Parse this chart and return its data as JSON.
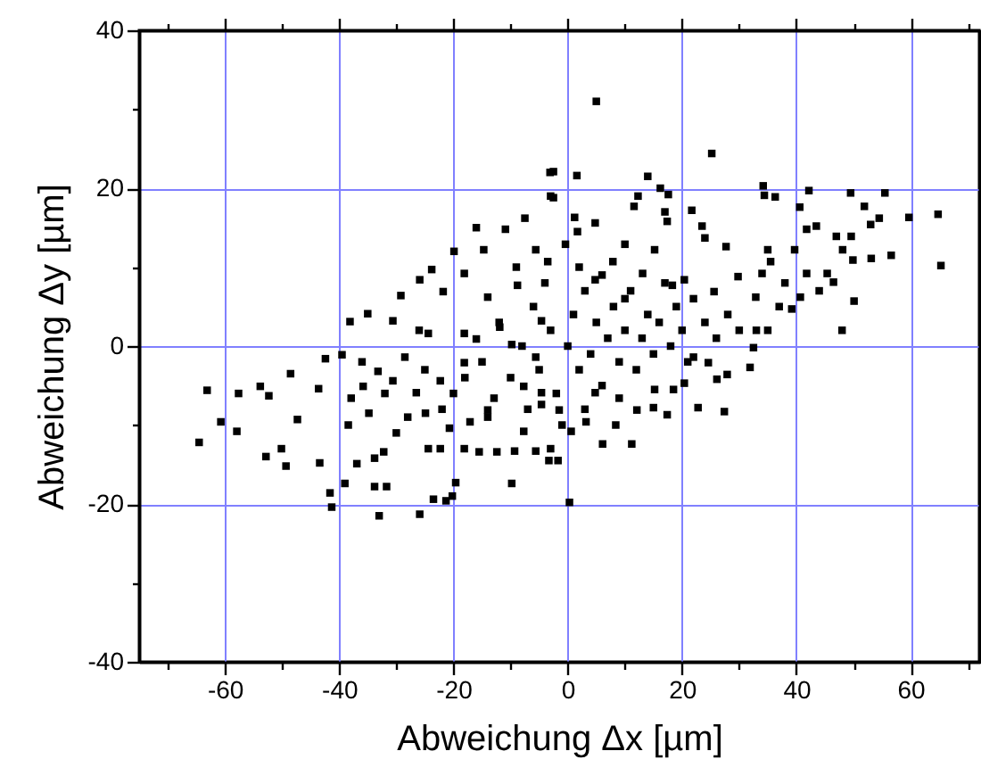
{
  "chart_data": {
    "type": "scatter",
    "xlabel": "Abweichung Δx [µm]",
    "ylabel": "Abweichung Δy [µm]",
    "xlim": [
      -75,
      72
    ],
    "ylim": [
      -40,
      40
    ],
    "xticks": [
      {
        "value": -70,
        "label": null
      },
      -60,
      {
        "value": -50,
        "label": null
      },
      -40,
      {
        "value": -30,
        "label": null
      },
      -20,
      {
        "value": -10,
        "label": null
      },
      0,
      {
        "value": 10,
        "label": null
      },
      20,
      {
        "value": 30,
        "label": null
      },
      40,
      {
        "value": 50,
        "label": null
      },
      60,
      {
        "value": 70,
        "label": null
      }
    ],
    "yticks": [
      -40,
      {
        "value": -30,
        "label": null
      },
      -20,
      {
        "value": -10,
        "label": null
      },
      0,
      {
        "value": 10,
        "label": null
      },
      20,
      {
        "value": 30,
        "label": null
      },
      40
    ],
    "grid": true,
    "marker": "square",
    "series": [
      {
        "color": "#000000",
        "x": [
          5,
          -64.5,
          -63.1,
          -60.7,
          -57.9,
          -57.6,
          -53.8,
          -52.3,
          -48.5,
          -47.3,
          -52.8,
          -50.1,
          -49.3,
          -43.6,
          -42.4,
          -41.6,
          -41.3,
          -43.4,
          -39.5,
          -39,
          -33,
          -25.9,
          -23.5,
          -21.3,
          -19.6,
          -20.2,
          -33.8,
          -31.7,
          -9.8,
          -38.4,
          -36.9,
          -33.8,
          -32.2,
          -37.9,
          -34.8,
          -35.8,
          -33.2,
          -30.6,
          -28.5,
          -24.4,
          -22.3,
          -18.1,
          -15.5,
          -12.4,
          -9.3,
          -5.6,
          -24.9,
          -20.7,
          -17.1,
          -14,
          -7.7,
          -26.5,
          -22.3,
          -18.1,
          -12.9,
          -7.7,
          -4.6,
          -16,
          -9.8,
          -5.6,
          0.3,
          -3.3,
          -1.7,
          -3,
          6.1,
          11.2,
          8.4,
          0.6,
          3.2,
          12.1,
          15,
          17.4,
          22.8,
          27.4,
          20.4,
          18.5,
          26.1,
          27.9,
          31.9,
          35,
          48,
          32.5,
          15.2,
          9,
          4.8,
          -1.5,
          -4.6,
          24.6,
          22,
          25.2,
          -2.5,
          1.6,
          -2.5,
          14,
          16.2,
          17.6,
          12.3,
          11.6,
          21.7,
          17,
          17.4,
          34.2,
          34.4,
          36.3,
          42.2,
          49.5,
          55.5,
          40.6,
          51.9,
          54.5,
          53,
          59.7,
          64.8,
          65.3,
          56.6,
          53.1,
          49.9,
          49.6,
          47,
          48.1,
          50.1,
          43.5,
          41.8,
          39.7,
          41.8,
          45.4,
          46.5,
          40.7,
          35,
          35.5,
          34,
          29.8,
          27.7,
          24,
          23.5,
          25.6,
          20.4,
          18.3,
          15.2,
          10,
          4.8,
          1.2,
          1.7,
          7.9,
          -0.4,
          -3.5,
          4.8,
          13.1,
          39.2,
          32.9,
          -16,
          -10.9,
          -7.5,
          -3.1,
          -3,
          -19.9,
          -23.8,
          -14.7,
          -25.9,
          -29.2,
          -35,
          -38.1,
          -30.6,
          -21.8,
          -18.1,
          -14,
          -8.8,
          -5.6,
          -4.6,
          -11.9,
          -18.1,
          -24.4,
          -15,
          -12,
          -10,
          -8,
          -6,
          -5,
          -3,
          -2,
          0,
          1,
          2,
          3,
          4,
          5,
          6,
          7,
          8,
          9,
          10,
          11,
          12,
          13,
          14,
          15,
          16,
          17,
          18,
          19,
          20,
          21,
          22,
          24,
          26,
          28,
          30,
          -20,
          -25,
          -28,
          -30,
          -22,
          -18,
          -14,
          -7,
          -1,
          3,
          6,
          10,
          -9,
          -4,
          2,
          -26,
          -32,
          -36,
          37,
          33,
          44,
          38
        ],
        "values": [
          31,
          -12.2,
          -5.6,
          -9.6,
          -10.8,
          -6,
          -5.1,
          -6.3,
          -3.5,
          -9.3,
          -14,
          -13,
          -15.2,
          -5.4,
          -1.6,
          -18.6,
          -20.4,
          -14.8,
          -1.1,
          -17.4,
          -21.5,
          -21.3,
          -19.4,
          -19.6,
          -17.3,
          -19,
          -17.8,
          -17.8,
          -17.4,
          -10,
          -14.9,
          -14.2,
          -13.4,
          -6.6,
          -8.5,
          -5.1,
          -3.2,
          -4.4,
          -1.4,
          -13,
          -13,
          -13,
          -13.4,
          -13.4,
          -13.3,
          -13.3,
          -8.5,
          -10.4,
          -9.6,
          -8.1,
          -10.8,
          -5.9,
          -4.4,
          -2.1,
          -6.6,
          -5.1,
          -7.4,
          0.9,
          0.2,
          -1.4,
          -19.8,
          -14.5,
          -14.5,
          -13,
          -12.4,
          -12.4,
          -10,
          -10.8,
          -9.6,
          -8.1,
          -7.8,
          -8.7,
          -7.8,
          -8.3,
          -4.7,
          -5.5,
          -4.2,
          -3.6,
          -2.7,
          2,
          2,
          -0.2,
          -5.5,
          -6.6,
          -5.9,
          -8.1,
          -5.9,
          -2.1,
          -1.4,
          24.4,
          22.1,
          21.6,
          18.8,
          21.5,
          20,
          19.2,
          19,
          17.7,
          17.2,
          17,
          15.8,
          20.3,
          19.1,
          18.9,
          19.7,
          19.4,
          19.4,
          17.6,
          17.7,
          16.2,
          15.4,
          16.3,
          16.7,
          10.2,
          11.5,
          11.1,
          10.9,
          13.9,
          13.9,
          12.2,
          5.7,
          15.2,
          14.8,
          12.2,
          9.2,
          9.2,
          8.1,
          6.2,
          12.2,
          10.7,
          9.2,
          8.8,
          12.6,
          13.7,
          15.2,
          6.9,
          8.4,
          7.7,
          12.2,
          12.9,
          15.6,
          16.3,
          14.5,
          10.7,
          12.9,
          10.7,
          8.4,
          9.2,
          4.7,
          6.2,
          15,
          14.8,
          16.2,
          22,
          19,
          12,
          9.7,
          12.2,
          8.4,
          6.4,
          4.1,
          3.1,
          3.2,
          6.9,
          9.2,
          6.2,
          7.7,
          12.2,
          3.2,
          2.4,
          1.6,
          1.6,
          -2,
          3,
          -4,
          0,
          5,
          -3,
          2,
          -6,
          0,
          4,
          -3,
          7,
          -1,
          3,
          -5,
          1,
          5,
          -2,
          2,
          7,
          -3,
          1,
          4,
          -1,
          3,
          8,
          0,
          5,
          2,
          -2,
          6,
          3,
          1,
          4,
          2,
          -6,
          -3,
          -9,
          -11,
          -8,
          -4,
          -9,
          -8,
          -10,
          -8,
          9,
          6,
          10,
          8,
          10,
          2,
          -6,
          -2,
          5,
          2,
          7,
          8
        ]
      }
    ]
  }
}
